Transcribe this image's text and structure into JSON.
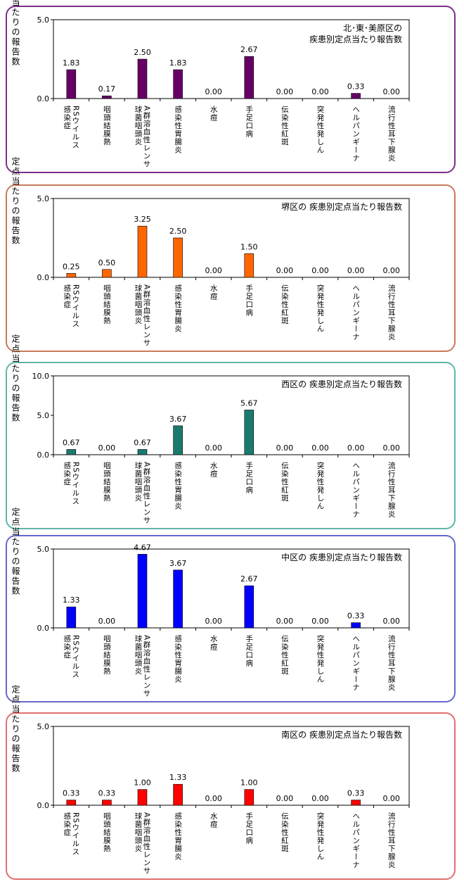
{
  "ylabel": "定点当たりの報告数",
  "charts": [
    {
      "title": [
        "北･東･美原区の",
        "疾患別定点当たり報告数"
      ],
      "color": "#660066",
      "border": "#7a2f8a",
      "ylim": [
        0,
        5
      ],
      "yticks": [
        "0.0",
        "5.0"
      ],
      "values": [
        1.83,
        0.17,
        2.5,
        1.83,
        0.0,
        2.67,
        0.0,
        0.0,
        0.33,
        0.0
      ],
      "labels": [
        "1.83",
        "0.17",
        "2.50",
        "1.83",
        "0.00",
        "2.67",
        "0.00",
        "0.00",
        "0.33",
        "0.00"
      ]
    },
    {
      "title": [
        "堺区の 疾患別定点当たり報告数"
      ],
      "color": "#ff6600",
      "border": "#c87a5a",
      "ylim": [
        0,
        5
      ],
      "yticks": [
        "0.0",
        "5.0"
      ],
      "values": [
        0.25,
        0.5,
        3.25,
        2.5,
        0.0,
        1.5,
        0.0,
        0.0,
        0.0,
        0.0
      ],
      "labels": [
        "0.25",
        "0.50",
        "3.25",
        "2.50",
        "0.00",
        "1.50",
        "0.00",
        "0.00",
        "0.00",
        "0.00"
      ]
    },
    {
      "title": [
        "西区の 疾患別定点当たり報告数"
      ],
      "color": "#1a7a6e",
      "border": "#5fb5a8",
      "ylim": [
        0,
        10
      ],
      "yticks": [
        "0.0",
        "5.0",
        "10.0"
      ],
      "values": [
        0.67,
        0.0,
        0.67,
        3.67,
        0.0,
        5.67,
        0.0,
        0.0,
        0.0,
        0.0
      ],
      "labels": [
        "0.67",
        "0.00",
        "0.67",
        "3.67",
        "0.00",
        "5.67",
        "0.00",
        "0.00",
        "0.00",
        "0.00"
      ]
    },
    {
      "title": [
        "中区の 疾患別定点当たり報告数"
      ],
      "color": "#0000ff",
      "border": "#6666cc",
      "ylim": [
        0,
        5
      ],
      "yticks": [
        "0.0",
        "5.0"
      ],
      "values": [
        1.33,
        0.0,
        4.67,
        3.67,
        0.0,
        2.67,
        0.0,
        0.0,
        0.33,
        0.0
      ],
      "labels": [
        "1.33",
        "0.00",
        "4.67",
        "3.67",
        "0.00",
        "2.67",
        "0.00",
        "0.00",
        "0.33",
        "0.00"
      ]
    },
    {
      "title": [
        "南区の 疾患別定点当たり報告数"
      ],
      "color": "#ff0000",
      "border": "#e07070",
      "ylim": [
        0,
        5
      ],
      "yticks": [
        "0.0",
        "5.0"
      ],
      "values": [
        0.33,
        0.33,
        1.0,
        1.33,
        0.0,
        1.0,
        0.0,
        0.0,
        0.33,
        0.0
      ],
      "labels": [
        "0.33",
        "0.33",
        "1.00",
        "1.33",
        "0.00",
        "1.00",
        "0.00",
        "0.00",
        "0.33",
        "0.00"
      ]
    }
  ],
  "categories": [
    [
      "RSウイルス",
      "感染症"
    ],
    [
      "咽頭結膜熱"
    ],
    [
      "A群溶血性レンサ",
      "球菌咽頭炎"
    ],
    [
      "感染性胃腸炎"
    ],
    [
      "水痘"
    ],
    [
      "手足口病"
    ],
    [
      "伝染性紅斑"
    ],
    [
      "突発性発しん"
    ],
    [
      "ヘルパンギーナ"
    ],
    [
      "流行性耳下腺炎"
    ]
  ],
  "chart_data": [
    {
      "type": "bar",
      "title": "北･東･美原区の疾患別定点当たり報告数",
      "ylabel": "定点当たりの報告数",
      "ylim": [
        0,
        5
      ],
      "categories": [
        "RSウイルス感染症",
        "咽頭結膜熱",
        "A群溶血性レンサ球菌咽頭炎",
        "感染性胃腸炎",
        "水痘",
        "手足口病",
        "伝染性紅斑",
        "突発性発しん",
        "ヘルパンギーナ",
        "流行性耳下腺炎"
      ],
      "values": [
        1.83,
        0.17,
        2.5,
        1.83,
        0.0,
        2.67,
        0.0,
        0.0,
        0.33,
        0.0
      ]
    },
    {
      "type": "bar",
      "title": "堺区の 疾患別定点当たり報告数",
      "ylabel": "定点当たりの報告数",
      "ylim": [
        0,
        5
      ],
      "categories": [
        "RSウイルス感染症",
        "咽頭結膜熱",
        "A群溶血性レンサ球菌咽頭炎",
        "感染性胃腸炎",
        "水痘",
        "手足口病",
        "伝染性紅斑",
        "突発性発しん",
        "ヘルパンギーナ",
        "流行性耳下腺炎"
      ],
      "values": [
        0.25,
        0.5,
        3.25,
        2.5,
        0.0,
        1.5,
        0.0,
        0.0,
        0.0,
        0.0
      ]
    },
    {
      "type": "bar",
      "title": "西区の 疾患別定点当たり報告数",
      "ylabel": "定点当たりの報告数",
      "ylim": [
        0,
        10
      ],
      "categories": [
        "RSウイルス感染症",
        "咽頭結膜熱",
        "A群溶血性レンサ球菌咽頭炎",
        "感染性胃腸炎",
        "水痘",
        "手足口病",
        "伝染性紅斑",
        "突発性発しん",
        "ヘルパンギーナ",
        "流行性耳下腺炎"
      ],
      "values": [
        0.67,
        0.0,
        0.67,
        3.67,
        0.0,
        5.67,
        0.0,
        0.0,
        0.0,
        0.0
      ]
    },
    {
      "type": "bar",
      "title": "中区の 疾患別定点当たり報告数",
      "ylabel": "定点当たりの報告数",
      "ylim": [
        0,
        5
      ],
      "categories": [
        "RSウイルス感染症",
        "咽頭結膜熱",
        "A群溶血性レンサ球菌咽頭炎",
        "感染性胃腸炎",
        "水痘",
        "手足口病",
        "伝染性紅斑",
        "突発性発しん",
        "ヘルパンギーナ",
        "流行性耳下腺炎"
      ],
      "values": [
        1.33,
        0.0,
        4.67,
        3.67,
        0.0,
        2.67,
        0.0,
        0.0,
        0.33,
        0.0
      ]
    },
    {
      "type": "bar",
      "title": "南区の 疾患別定点当たり報告数",
      "ylabel": "定点当たりの報告数",
      "ylim": [
        0,
        5
      ],
      "categories": [
        "RSウイルス感染症",
        "咽頭結膜熱",
        "A群溶血性レンサ球菌咽頭炎",
        "感染性胃腸炎",
        "水痘",
        "手足口病",
        "伝染性紅斑",
        "突発性発しん",
        "ヘルパンギーナ",
        "流行性耳下腺炎"
      ],
      "values": [
        0.33,
        0.33,
        1.0,
        1.33,
        0.0,
        1.0,
        0.0,
        0.0,
        0.33,
        0.0
      ]
    }
  ]
}
